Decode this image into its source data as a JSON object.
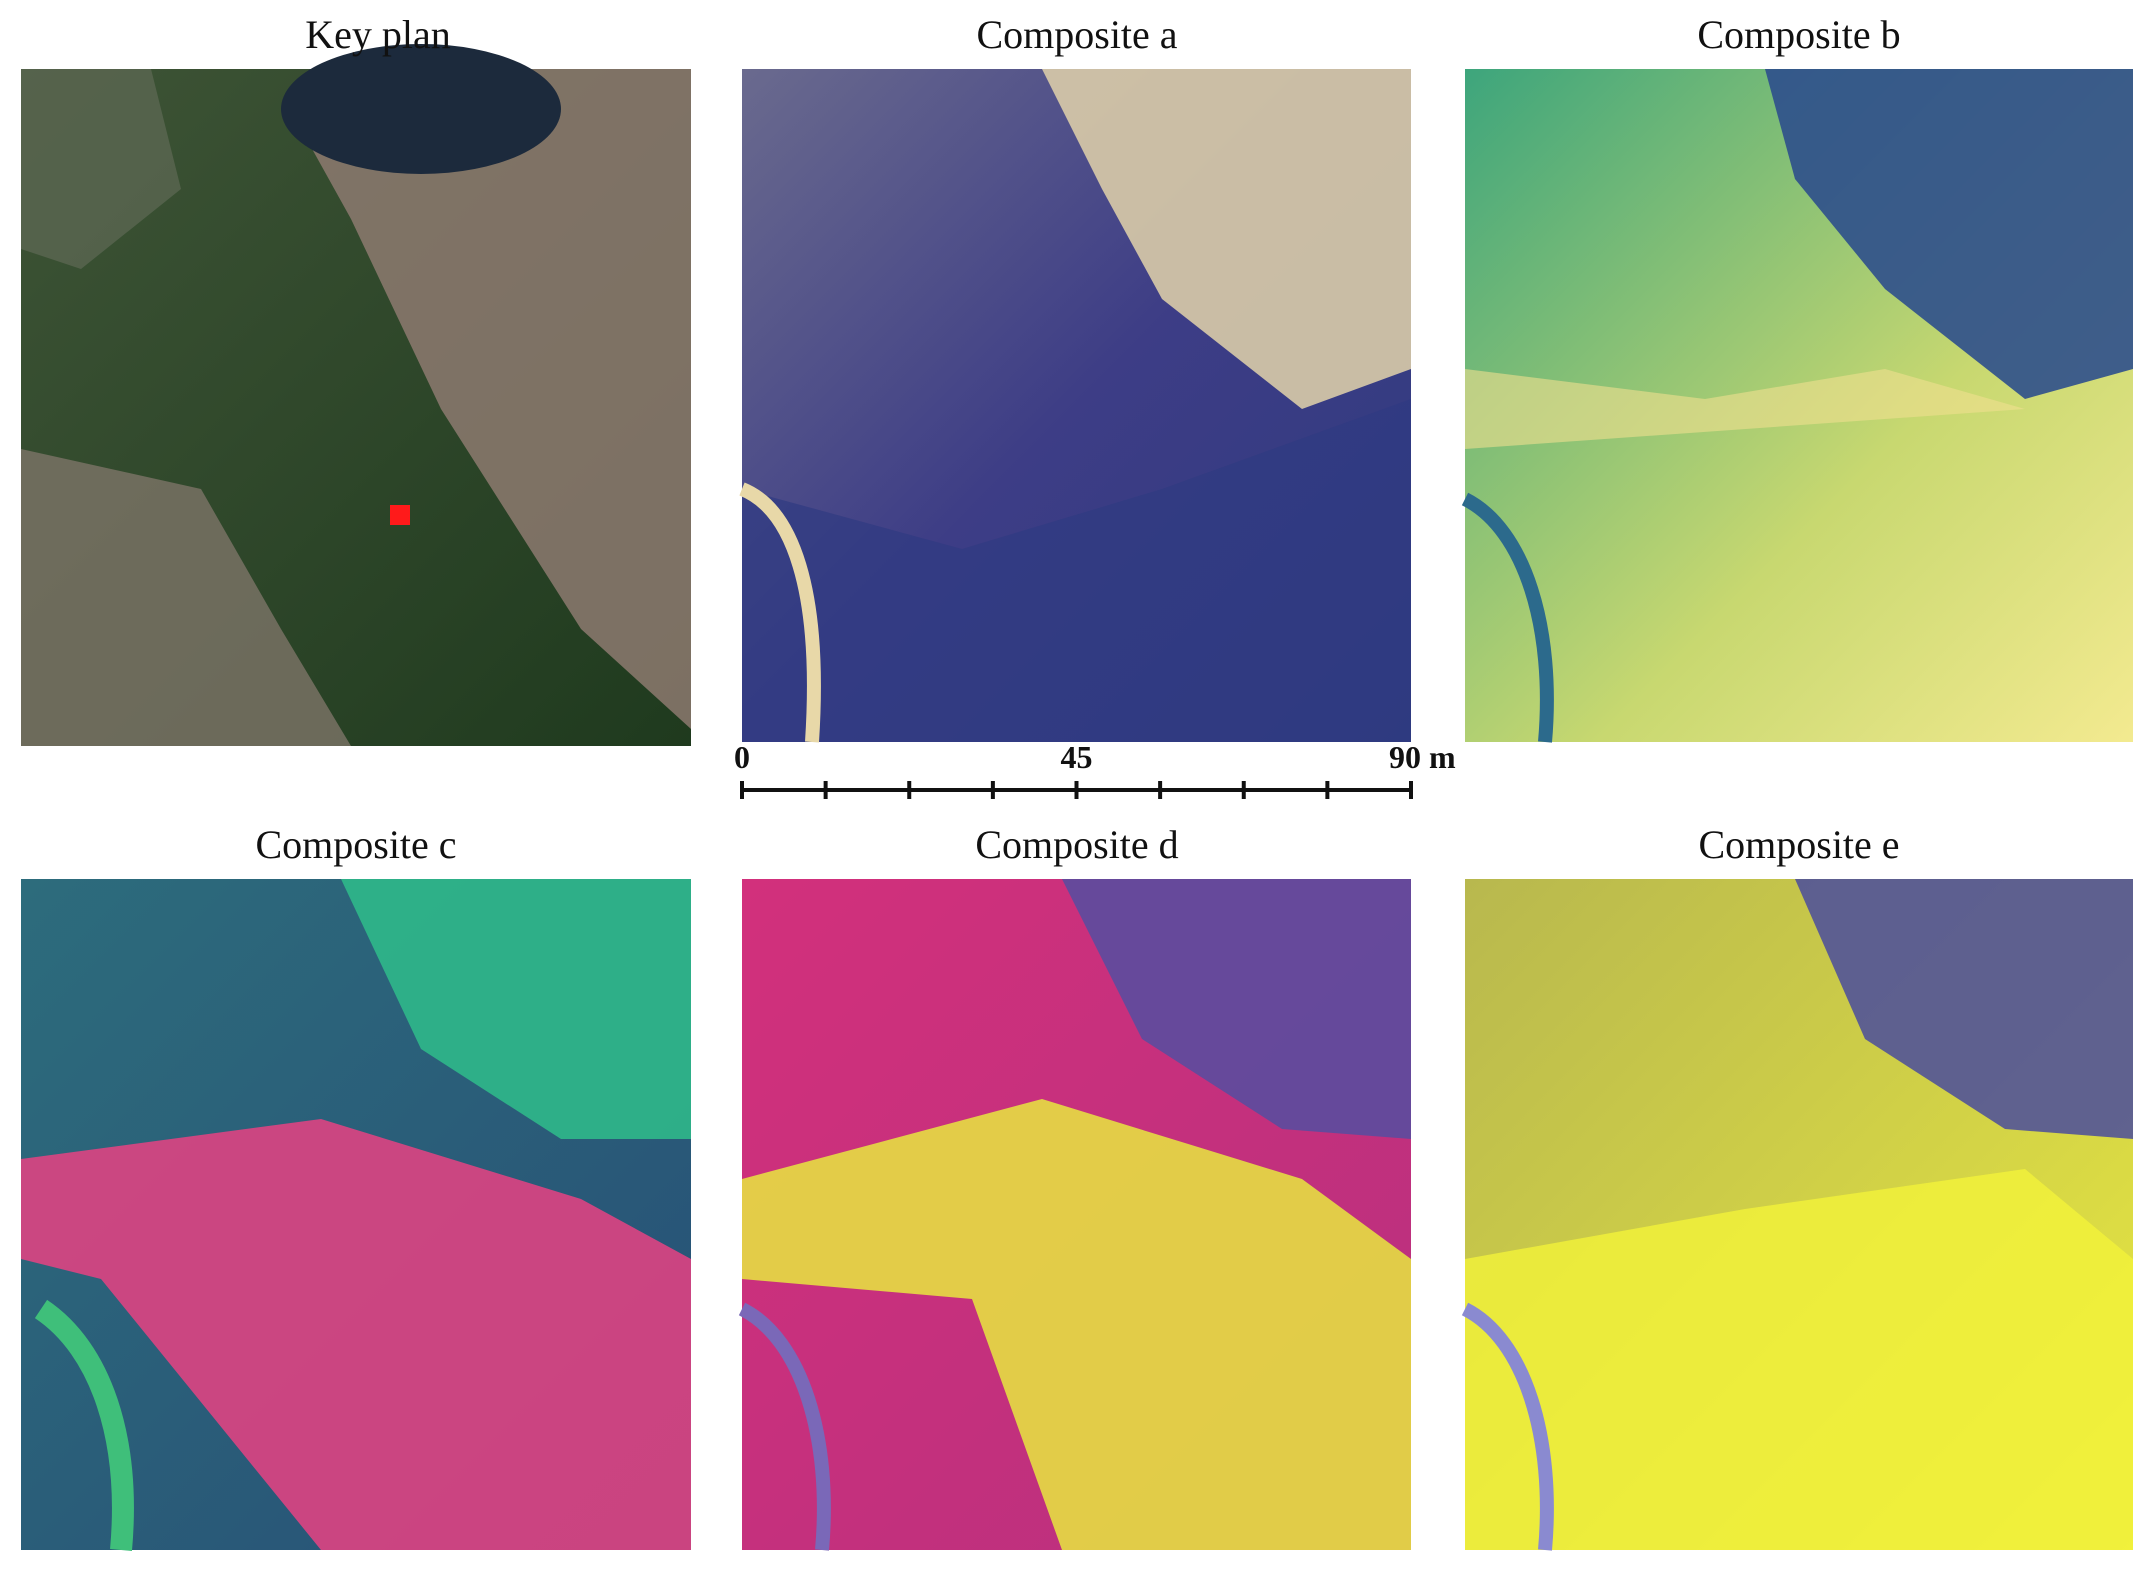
{
  "panels": [
    {
      "title": "Key plan"
    },
    {
      "title": "Composite a"
    },
    {
      "title": "Composite b"
    },
    {
      "title": "Composite c"
    },
    {
      "title": "Composite d"
    },
    {
      "title": "Composite e"
    }
  ],
  "scale_bar": {
    "ticks": [
      0,
      11.25,
      22.5,
      33.75,
      45,
      56.25,
      67.5,
      78.75,
      90
    ],
    "labels": [
      {
        "value": 0,
        "label": "0"
      },
      {
        "value": 45,
        "label": "45"
      },
      {
        "value": 90,
        "label": "90 m"
      }
    ]
  }
}
